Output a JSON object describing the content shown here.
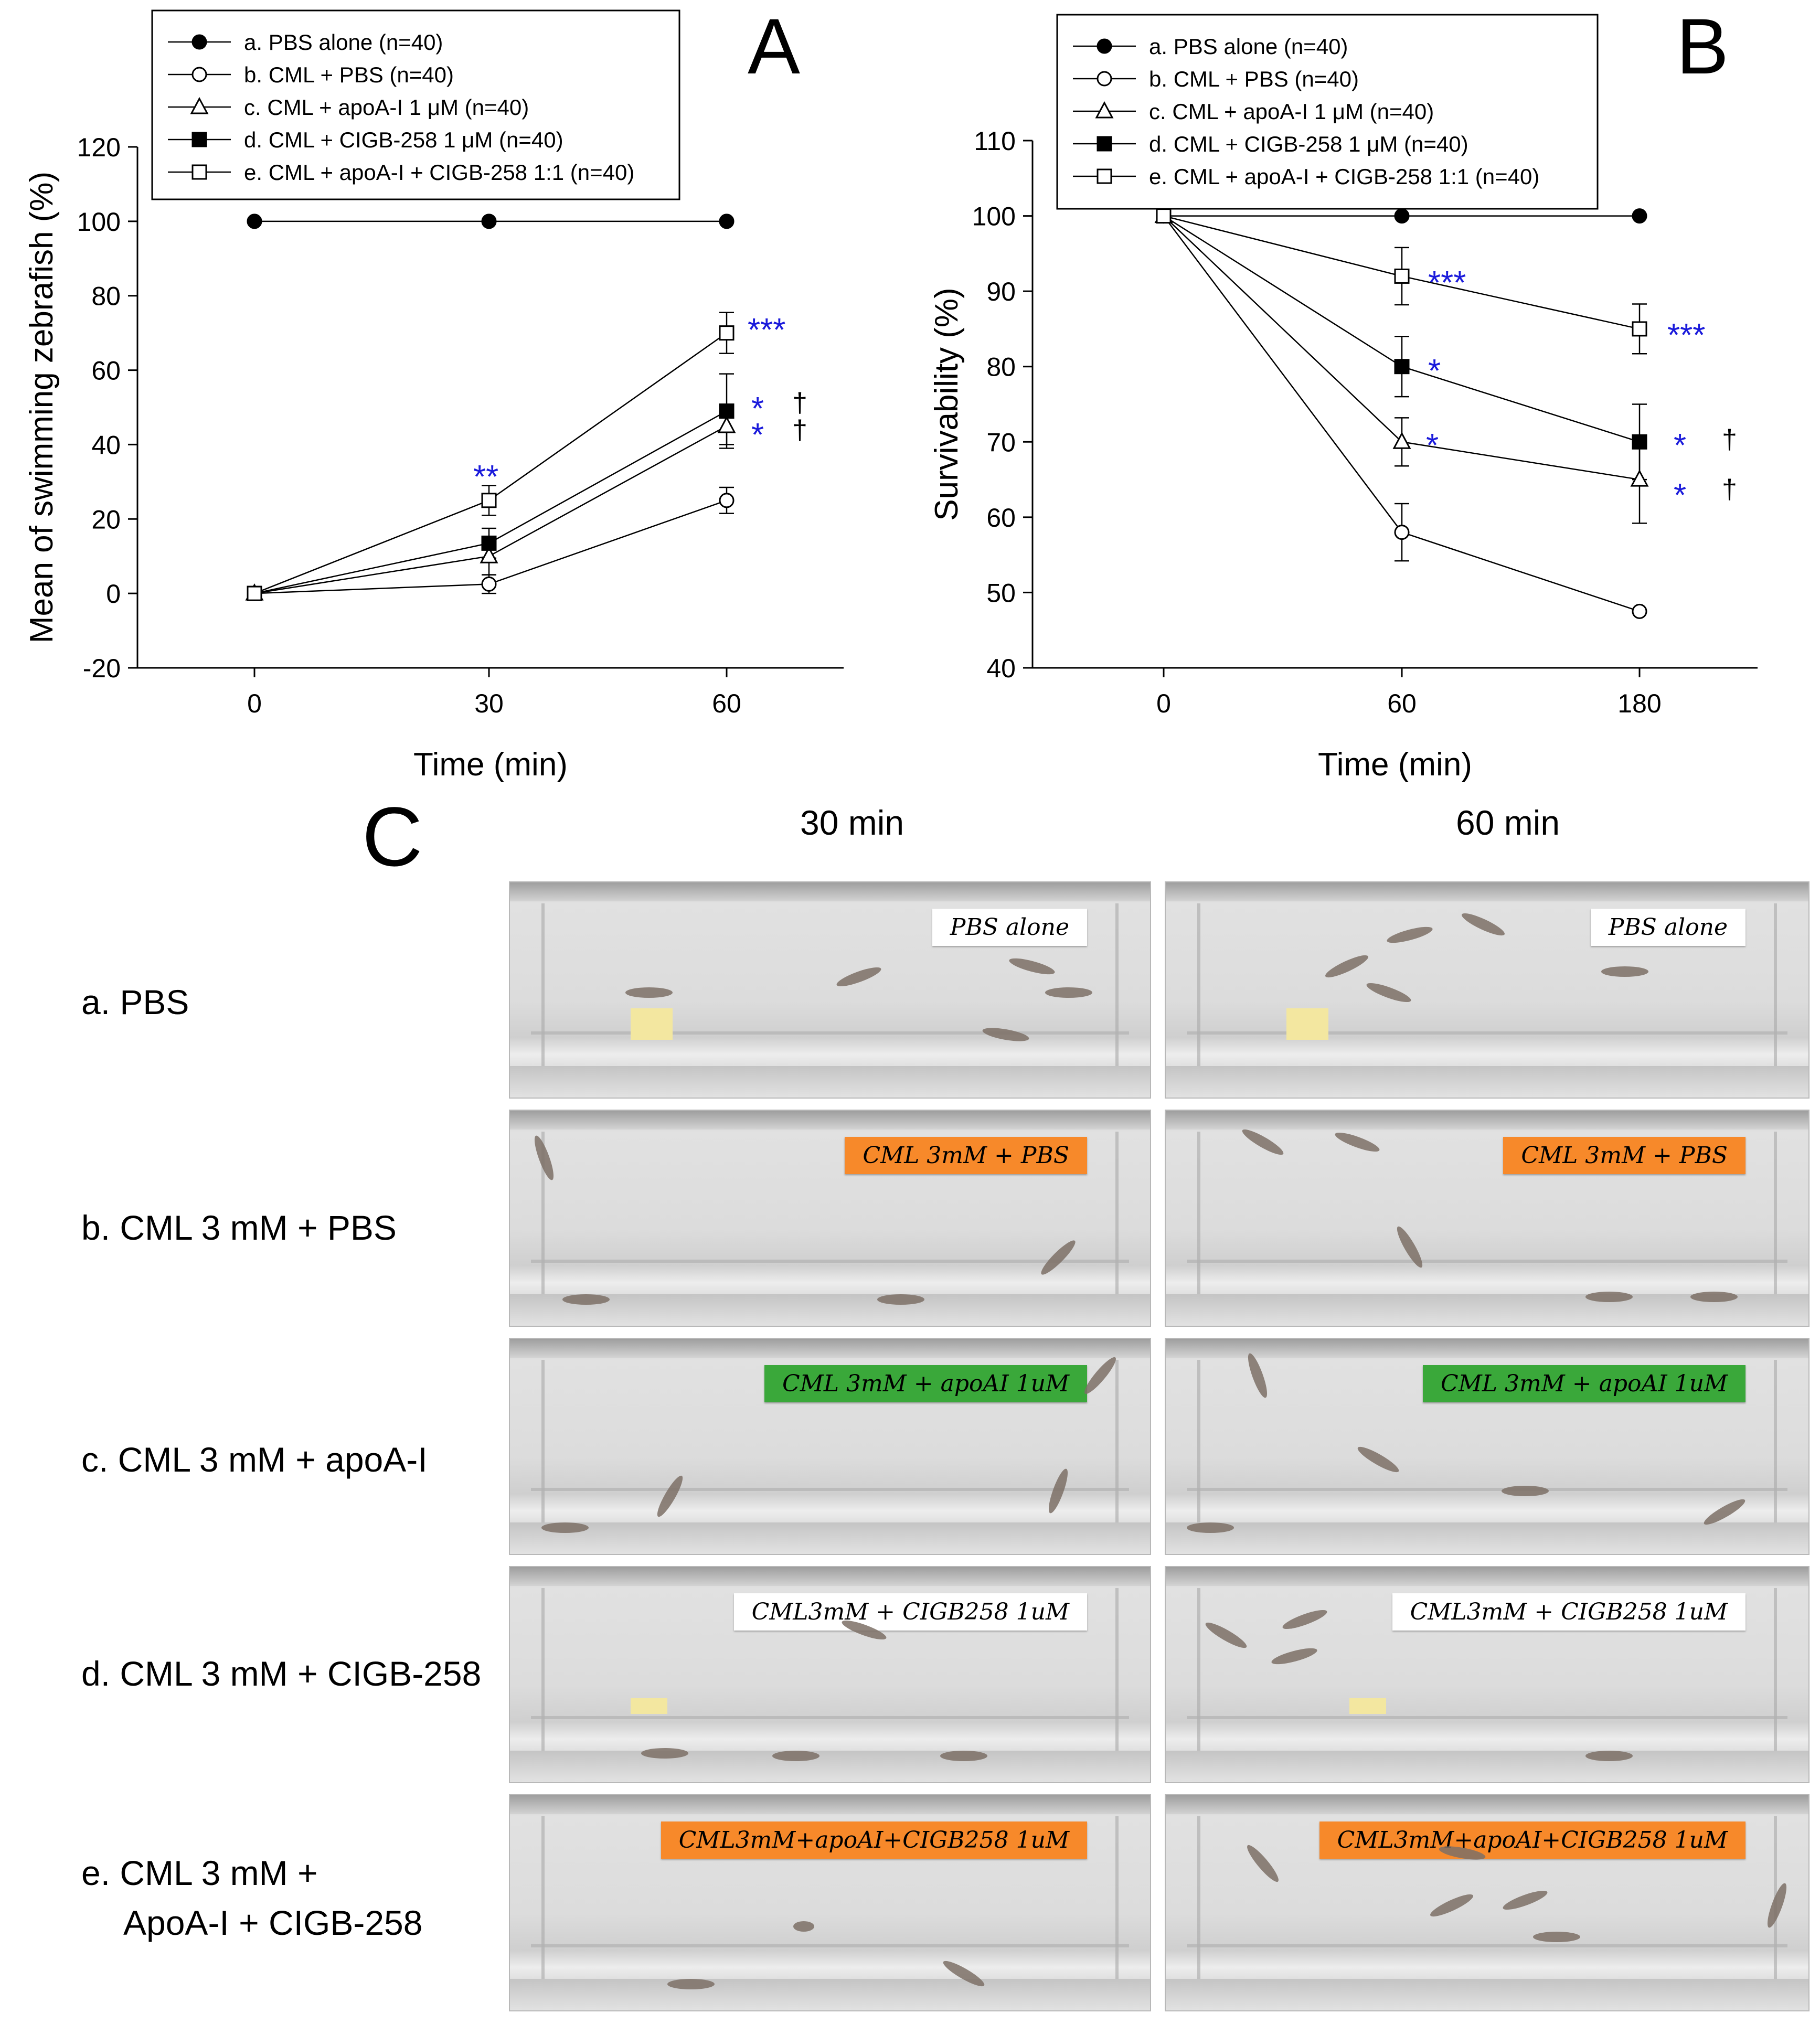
{
  "chart_data": [
    {
      "panel": "A",
      "type": "line",
      "ylabel": "Mean of swimming zebrafish (%)",
      "xlabel": "Time (min)",
      "x": [
        0,
        30,
        60
      ],
      "x_tick_labels": [
        "0",
        "30",
        "60"
      ],
      "ylim": [
        -20,
        120
      ],
      "y_ticks": [
        -20,
        0,
        20,
        40,
        60,
        80,
        100,
        120
      ],
      "legend_position": "top-left",
      "series": [
        {
          "name": "a. PBS alone (n=40)",
          "marker": "filled-circle",
          "values": [
            100,
            100,
            100
          ],
          "errors": [
            0,
            0,
            0
          ]
        },
        {
          "name": "b. CML + PBS (n=40)",
          "marker": "open-circle",
          "values": [
            0,
            2.5,
            25
          ],
          "errors": [
            0,
            2.5,
            3.5
          ]
        },
        {
          "name": "c. CML + apoA-I 1 μM (n=40)",
          "marker": "open-triangle",
          "values": [
            0,
            10,
            45
          ],
          "errors": [
            0,
            5,
            5
          ]
        },
        {
          "name": "d. CML + CIGB-258 1 μM (n=40)",
          "marker": "filled-square",
          "values": [
            0,
            13.5,
            49
          ],
          "errors": [
            0,
            4,
            10
          ]
        },
        {
          "name": "e. CML + apoA-I + CIGB-258 1:1 (n=40)",
          "marker": "open-square",
          "values": [
            0,
            25,
            70
          ],
          "errors": [
            0,
            4,
            5.5
          ]
        }
      ],
      "annotations": [
        {
          "text": "**",
          "x": 30,
          "y": 30,
          "color": "#1a1adb"
        },
        {
          "text": "***",
          "x": 60,
          "y": 70,
          "color": "#1a1adb"
        },
        {
          "text": "*",
          "x": 60,
          "y": 49,
          "color": "#1a1adb"
        },
        {
          "text": "†",
          "x": 60,
          "y": 49,
          "color": "#000000"
        },
        {
          "text": "*",
          "x": 60,
          "y": 43,
          "color": "#1a1adb"
        },
        {
          "text": "†",
          "x": 60,
          "y": 43,
          "color": "#000000"
        }
      ]
    },
    {
      "panel": "B",
      "type": "line",
      "ylabel": "Survivability (%)",
      "xlabel": "Time (min)",
      "x": [
        0,
        60,
        180
      ],
      "x_tick_labels": [
        "0",
        "60",
        "180"
      ],
      "ylim": [
        40,
        110
      ],
      "y_ticks": [
        40,
        50,
        60,
        70,
        80,
        90,
        100,
        110
      ],
      "legend_position": "top-left",
      "series": [
        {
          "name": "a. PBS alone (n=40)",
          "marker": "filled-circle",
          "values": [
            100,
            100,
            100
          ],
          "errors": [
            0,
            0,
            0
          ]
        },
        {
          "name": "b. CML + PBS (n=40)",
          "marker": "open-circle",
          "values": [
            100,
            58,
            47.5
          ],
          "errors": [
            0,
            3.8,
            0
          ]
        },
        {
          "name": "c. CML + apoA-I 1 μM (n=40)",
          "marker": "open-triangle",
          "values": [
            100,
            70,
            65
          ],
          "errors": [
            0,
            3.2,
            5.8
          ]
        },
        {
          "name": "d. CML + CIGB-258 1 μM (n=40)",
          "marker": "filled-square",
          "values": [
            100,
            80,
            70
          ],
          "errors": [
            0,
            4,
            5
          ]
        },
        {
          "name": "e. CML + apoA-I + CIGB-258 1:1 (n=40)",
          "marker": "open-square",
          "values": [
            100,
            92,
            85
          ],
          "errors": [
            0,
            3.8,
            3.3
          ]
        }
      ],
      "annotations": [
        {
          "text": "***",
          "x": 60,
          "y": 92,
          "color": "#1a1adb"
        },
        {
          "text": "*",
          "x": 60,
          "y": 80,
          "color": "#1a1adb"
        },
        {
          "text": "*",
          "x": 60,
          "y": 70,
          "color": "#1a1adb"
        },
        {
          "text": "***",
          "x": 180,
          "y": 85,
          "color": "#1a1adb"
        },
        {
          "text": "*",
          "x": 180,
          "y": 70,
          "color": "#1a1adb"
        },
        {
          "text": "†",
          "x": 180,
          "y": 70,
          "color": "#000000"
        },
        {
          "text": "*",
          "x": 180,
          "y": 65,
          "color": "#1a1adb"
        },
        {
          "text": "†",
          "x": 180,
          "y": 65,
          "color": "#000000"
        }
      ]
    }
  ],
  "panel_c": {
    "letter": "C",
    "columns": [
      "30 min",
      "60 min"
    ],
    "rows": [
      {
        "label": "a. PBS",
        "tape_30": "PBS alone",
        "tape_60": "PBS alone",
        "tape_color": "#ffffff"
      },
      {
        "label": "b. CML 3 mM + PBS",
        "tape_30": "CML 3mM + PBS",
        "tape_60": "CML 3mM + PBS",
        "tape_color": "#f7892a"
      },
      {
        "label": "c. CML 3 mM + apoA-I",
        "tape_30": "CML 3mM + apoAI 1uM",
        "tape_60": "CML 3mM + apoAI 1uM",
        "tape_color": "#3aa83a"
      },
      {
        "label": "d. CML 3 mM + CIGB-258",
        "tape_30": "CML3mM + CIGB258 1uM",
        "tape_60": "CML3mM + CIGB258 1uM",
        "tape_color": "#ffffff"
      },
      {
        "label": "e. CML 3 mM  +",
        "label2": "ApoA-I + CIGB-258",
        "tape_30": "CML3mM+apoAI+CIGB258 1uM",
        "tape_60": "CML3mM+apoAI+CIGB258 1uM",
        "tape_color": "#f7892a"
      }
    ]
  },
  "colors": {
    "significance": "#1a1adb",
    "line": "#000000"
  }
}
